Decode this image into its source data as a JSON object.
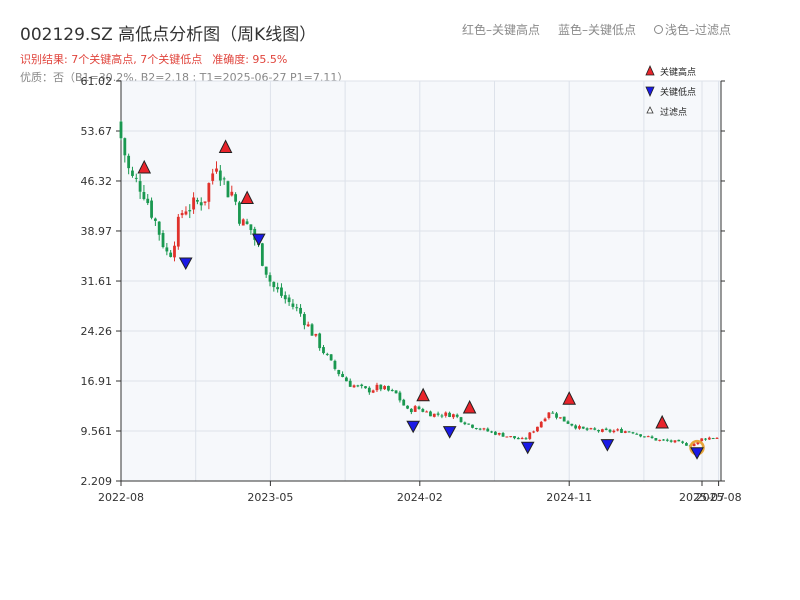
{
  "header": {
    "title": "002129.SZ 高低点分析图（周K线图）",
    "result_text": "识别结果: 7个关键高点, 7个关键低点",
    "accuracy_text": "准确度: 95.5%",
    "quality_text": "优质：否（B1=30.2%, B2=2.18 ; T1=2025-06-27 P1=7.11）"
  },
  "top_legend": {
    "red_label": "红色–关键高点",
    "blue_label": "蓝色–关键低点",
    "light_label": "浅色–过滤点"
  },
  "colors": {
    "up": "#e0312b",
    "down": "#1a9850",
    "high_marker": "#e8242b",
    "low_marker": "#1a1ae6",
    "filtered": "#e8a53a",
    "plot_bg": "#f6f8fb",
    "grid": "#dde2ea"
  },
  "chart_data": {
    "type": "candlestick",
    "title": "002129.SZ 高低点分析图（周K线图）",
    "ylim": [
      2.209,
      61.02
    ],
    "y_ticks": [
      "2.209",
      "9.561",
      "16.91",
      "24.26",
      "31.61",
      "38.97",
      "46.32",
      "53.67",
      "61.02"
    ],
    "y_tick_values": [
      2.209,
      9.561,
      16.91,
      24.26,
      31.61,
      38.97,
      46.32,
      53.67,
      61.02
    ],
    "x_range": [
      "2022-08",
      "2025-08"
    ],
    "x_ticks": [
      "2022-08",
      "2023-05",
      "2024-02",
      "2024-11",
      "2025-07",
      "2025-08"
    ],
    "x_tick_months": [
      0,
      9,
      18,
      27,
      35,
      36
    ],
    "grid": true,
    "legend_position": "top-right",
    "legend": {
      "high": "关键高点",
      "low": "关键低点",
      "filtered": "过滤点"
    },
    "price_anchors": {
      "months": [
        0,
        0.8,
        1.5,
        2.2,
        3.1,
        4.0,
        4.5,
        5.3,
        6.0,
        6.6,
        7.0,
        7.5,
        8.0,
        8.5,
        9.3,
        10.1,
        11.0,
        12.0,
        13.0,
        14.0,
        15.0,
        15.8,
        16.8,
        17.5,
        18.0,
        19.0,
        20.2,
        21.2,
        22.2,
        23.5,
        24.5,
        25.4,
        26.0,
        27.0,
        28.0,
        29.4,
        30.2,
        31.0,
        32.0,
        32.6,
        33.5,
        34.0,
        34.6,
        35.3,
        36.0
      ],
      "prices": [
        55.0,
        46.8,
        45.5,
        41.0,
        35.0,
        42.5,
        42.5,
        44.0,
        49.5,
        45.0,
        44.5,
        40.0,
        39.5,
        36.5,
        31.0,
        29.0,
        27.0,
        23.0,
        19.0,
        16.5,
        15.5,
        16.0,
        15.0,
        12.5,
        13.0,
        12.0,
        12.0,
        10.5,
        9.6,
        8.8,
        8.2,
        10.5,
        12.5,
        11.0,
        9.8,
        9.5,
        9.6,
        9.5,
        8.6,
        8.2,
        8.0,
        7.7,
        7.5,
        8.5,
        8.6
      ]
    },
    "key_highs": [
      {
        "month": 1.4,
        "price": 47.5
      },
      {
        "month": 6.3,
        "price": 50.5
      },
      {
        "month": 7.6,
        "price": 43.0
      },
      {
        "month": 18.2,
        "price": 14.0
      },
      {
        "month": 21.0,
        "price": 12.2
      },
      {
        "month": 27.0,
        "price": 13.5
      },
      {
        "month": 32.6,
        "price": 10.0
      }
    ],
    "key_lows": [
      {
        "month": 3.9,
        "price": 35.0
      },
      {
        "month": 8.3,
        "price": 38.5
      },
      {
        "month": 17.6,
        "price": 11.0
      },
      {
        "month": 19.8,
        "price": 10.2
      },
      {
        "month": 24.5,
        "price": 7.9
      },
      {
        "month": 29.3,
        "price": 8.3
      },
      {
        "month": 34.7,
        "price": 7.1
      }
    ],
    "filtered_points": [
      {
        "month": 34.7,
        "price": 7.11
      }
    ]
  }
}
